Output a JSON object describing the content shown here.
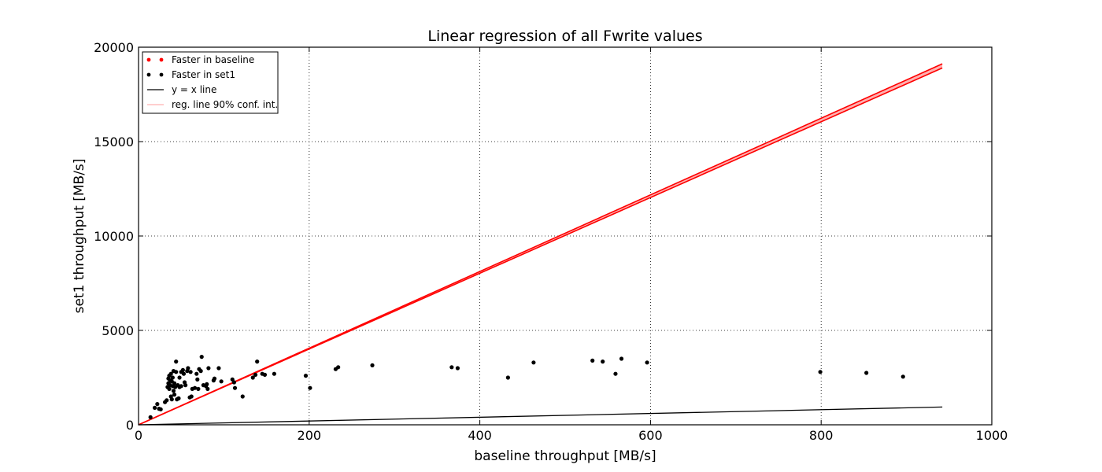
{
  "chart_data": {
    "type": "scatter",
    "title": "Linear regression of all Fwrite values",
    "xlabel": "baseline throughput [MB/s]",
    "ylabel": "set1 throughput [MB/s]",
    "xlim": [
      0,
      1000
    ],
    "ylim": [
      0,
      20000
    ],
    "x_ticks": [
      0,
      200,
      400,
      600,
      800,
      1000
    ],
    "y_ticks": [
      0,
      5000,
      10000,
      15000,
      20000
    ],
    "x_tick_labels": [
      "0",
      "200",
      "400",
      "600",
      "800",
      "1000"
    ],
    "y_tick_labels": [
      "0",
      "5000",
      "10000",
      "15000",
      "20000"
    ],
    "grid": true,
    "grid_style": "dotted",
    "legend_position": "top-left",
    "legend": [
      {
        "label": "Faster in baseline",
        "kind": "points",
        "color": "#ff0000"
      },
      {
        "label": "Faster in set1",
        "kind": "points",
        "color": "#000000"
      },
      {
        "label": "y = x line",
        "kind": "line",
        "color": "#000000"
      },
      {
        "label": "reg. line 90% conf. int.",
        "kind": "line",
        "color": "#ffb0b0"
      }
    ],
    "series": [
      {
        "name": "Faster in baseline",
        "kind": "points",
        "color": "#ff0000",
        "points": []
      },
      {
        "name": "Faster in set1",
        "kind": "points",
        "color": "#000000",
        "points": [
          [
            14,
            400
          ],
          [
            19,
            900
          ],
          [
            22,
            1100
          ],
          [
            24,
            850
          ],
          [
            26,
            820
          ],
          [
            31,
            1200
          ],
          [
            33,
            1300
          ],
          [
            34,
            2000
          ],
          [
            35,
            2200
          ],
          [
            35,
            2450
          ],
          [
            36,
            2600
          ],
          [
            36,
            1900
          ],
          [
            37,
            2350
          ],
          [
            37,
            2100
          ],
          [
            38,
            1500
          ],
          [
            38,
            2700
          ],
          [
            39,
            1350
          ],
          [
            39,
            2300
          ],
          [
            40,
            2500
          ],
          [
            40,
            2050
          ],
          [
            41,
            1800
          ],
          [
            41,
            2850
          ],
          [
            42,
            2200
          ],
          [
            42,
            1600
          ],
          [
            43,
            2000
          ],
          [
            44,
            2800
          ],
          [
            44,
            3350
          ],
          [
            45,
            1350
          ],
          [
            46,
            2100
          ],
          [
            47,
            1400
          ],
          [
            48,
            2500
          ],
          [
            48,
            2000
          ],
          [
            50,
            2800
          ],
          [
            50,
            2050
          ],
          [
            52,
            2900
          ],
          [
            53,
            2700
          ],
          [
            54,
            2250
          ],
          [
            55,
            2100
          ],
          [
            57,
            2850
          ],
          [
            58,
            3000
          ],
          [
            60,
            1450
          ],
          [
            61,
            2800
          ],
          [
            62,
            1500
          ],
          [
            63,
            1900
          ],
          [
            66,
            1950
          ],
          [
            68,
            2700
          ],
          [
            69,
            2400
          ],
          [
            70,
            1900
          ],
          [
            71,
            2950
          ],
          [
            73,
            2850
          ],
          [
            74,
            3600
          ],
          [
            76,
            2100
          ],
          [
            79,
            2050
          ],
          [
            80,
            2150
          ],
          [
            81,
            1900
          ],
          [
            82,
            3000
          ],
          [
            88,
            2350
          ],
          [
            89,
            2450
          ],
          [
            94,
            3000
          ],
          [
            97,
            2300
          ],
          [
            110,
            2400
          ],
          [
            112,
            2250
          ],
          [
            113,
            1950
          ],
          [
            122,
            1500
          ],
          [
            134,
            2500
          ],
          [
            137,
            2650
          ],
          [
            139,
            3350
          ],
          [
            145,
            2700
          ],
          [
            148,
            2650
          ],
          [
            159,
            2700
          ],
          [
            196,
            2600
          ],
          [
            201,
            1950
          ],
          [
            231,
            2950
          ],
          [
            234,
            3050
          ],
          [
            274,
            3150
          ],
          [
            367,
            3050
          ],
          [
            374,
            3000
          ],
          [
            433,
            2500
          ],
          [
            463,
            3300
          ],
          [
            532,
            3400
          ],
          [
            544,
            3350
          ],
          [
            559,
            2700
          ],
          [
            566,
            3500
          ],
          [
            596,
            3300
          ],
          [
            799,
            2800
          ],
          [
            853,
            2750
          ],
          [
            896,
            2550
          ]
        ]
      },
      {
        "name": "y = x line",
        "kind": "line",
        "color": "#000000",
        "points": [
          [
            0,
            0
          ],
          [
            942,
            942
          ]
        ]
      },
      {
        "name": "reg. line 90% conf. int.",
        "kind": "band",
        "color": "#ff0000",
        "fill": "#ffb0b0",
        "upper": [
          [
            0,
            0
          ],
          [
            942,
            19120
          ]
        ],
        "lower": [
          [
            0,
            0
          ],
          [
            942,
            18900
          ]
        ]
      }
    ]
  }
}
